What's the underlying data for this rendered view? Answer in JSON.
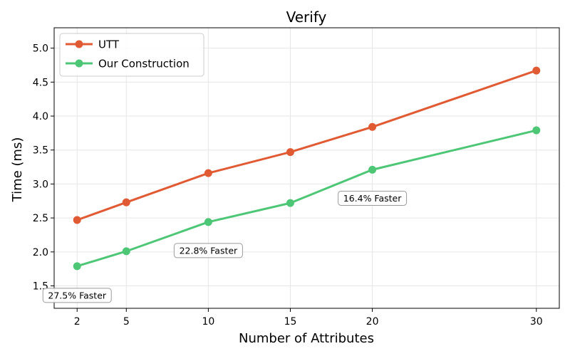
{
  "chart_data": {
    "type": "line",
    "title": "Verify",
    "xlabel": "Number of Attributes",
    "ylabel": "Time (ms)",
    "x": [
      2,
      5,
      10,
      15,
      20,
      30
    ],
    "x_tick_labels": [
      "2",
      "5",
      "10",
      "15",
      "20",
      "30"
    ],
    "xlim": [
      0.6,
      31.4
    ],
    "ylim": [
      1.17,
      5.3
    ],
    "y_ticks": [
      1.5,
      2.0,
      2.5,
      3.0,
      3.5,
      4.0,
      4.5,
      5.0
    ],
    "y_tick_labels": [
      "1.5",
      "2.0",
      "2.5",
      "3.0",
      "3.5",
      "4.0",
      "4.5",
      "5.0"
    ],
    "grid": true,
    "legend_position": "top-left",
    "series": [
      {
        "name": "UTT",
        "color": "#e05a33",
        "values": [
          2.47,
          2.73,
          3.16,
          3.47,
          3.84,
          4.67
        ]
      },
      {
        "name": "Our Construction",
        "color": "#4dc776",
        "values": [
          1.79,
          2.01,
          2.44,
          2.72,
          3.21,
          3.79
        ]
      }
    ],
    "annotations": [
      {
        "text": "27.5% Faster",
        "x": 2,
        "y": 1.36
      },
      {
        "text": "22.8% Faster",
        "x": 10,
        "y": 2.02
      },
      {
        "text": "16.4% Faster",
        "x": 20,
        "y": 2.79
      }
    ]
  }
}
